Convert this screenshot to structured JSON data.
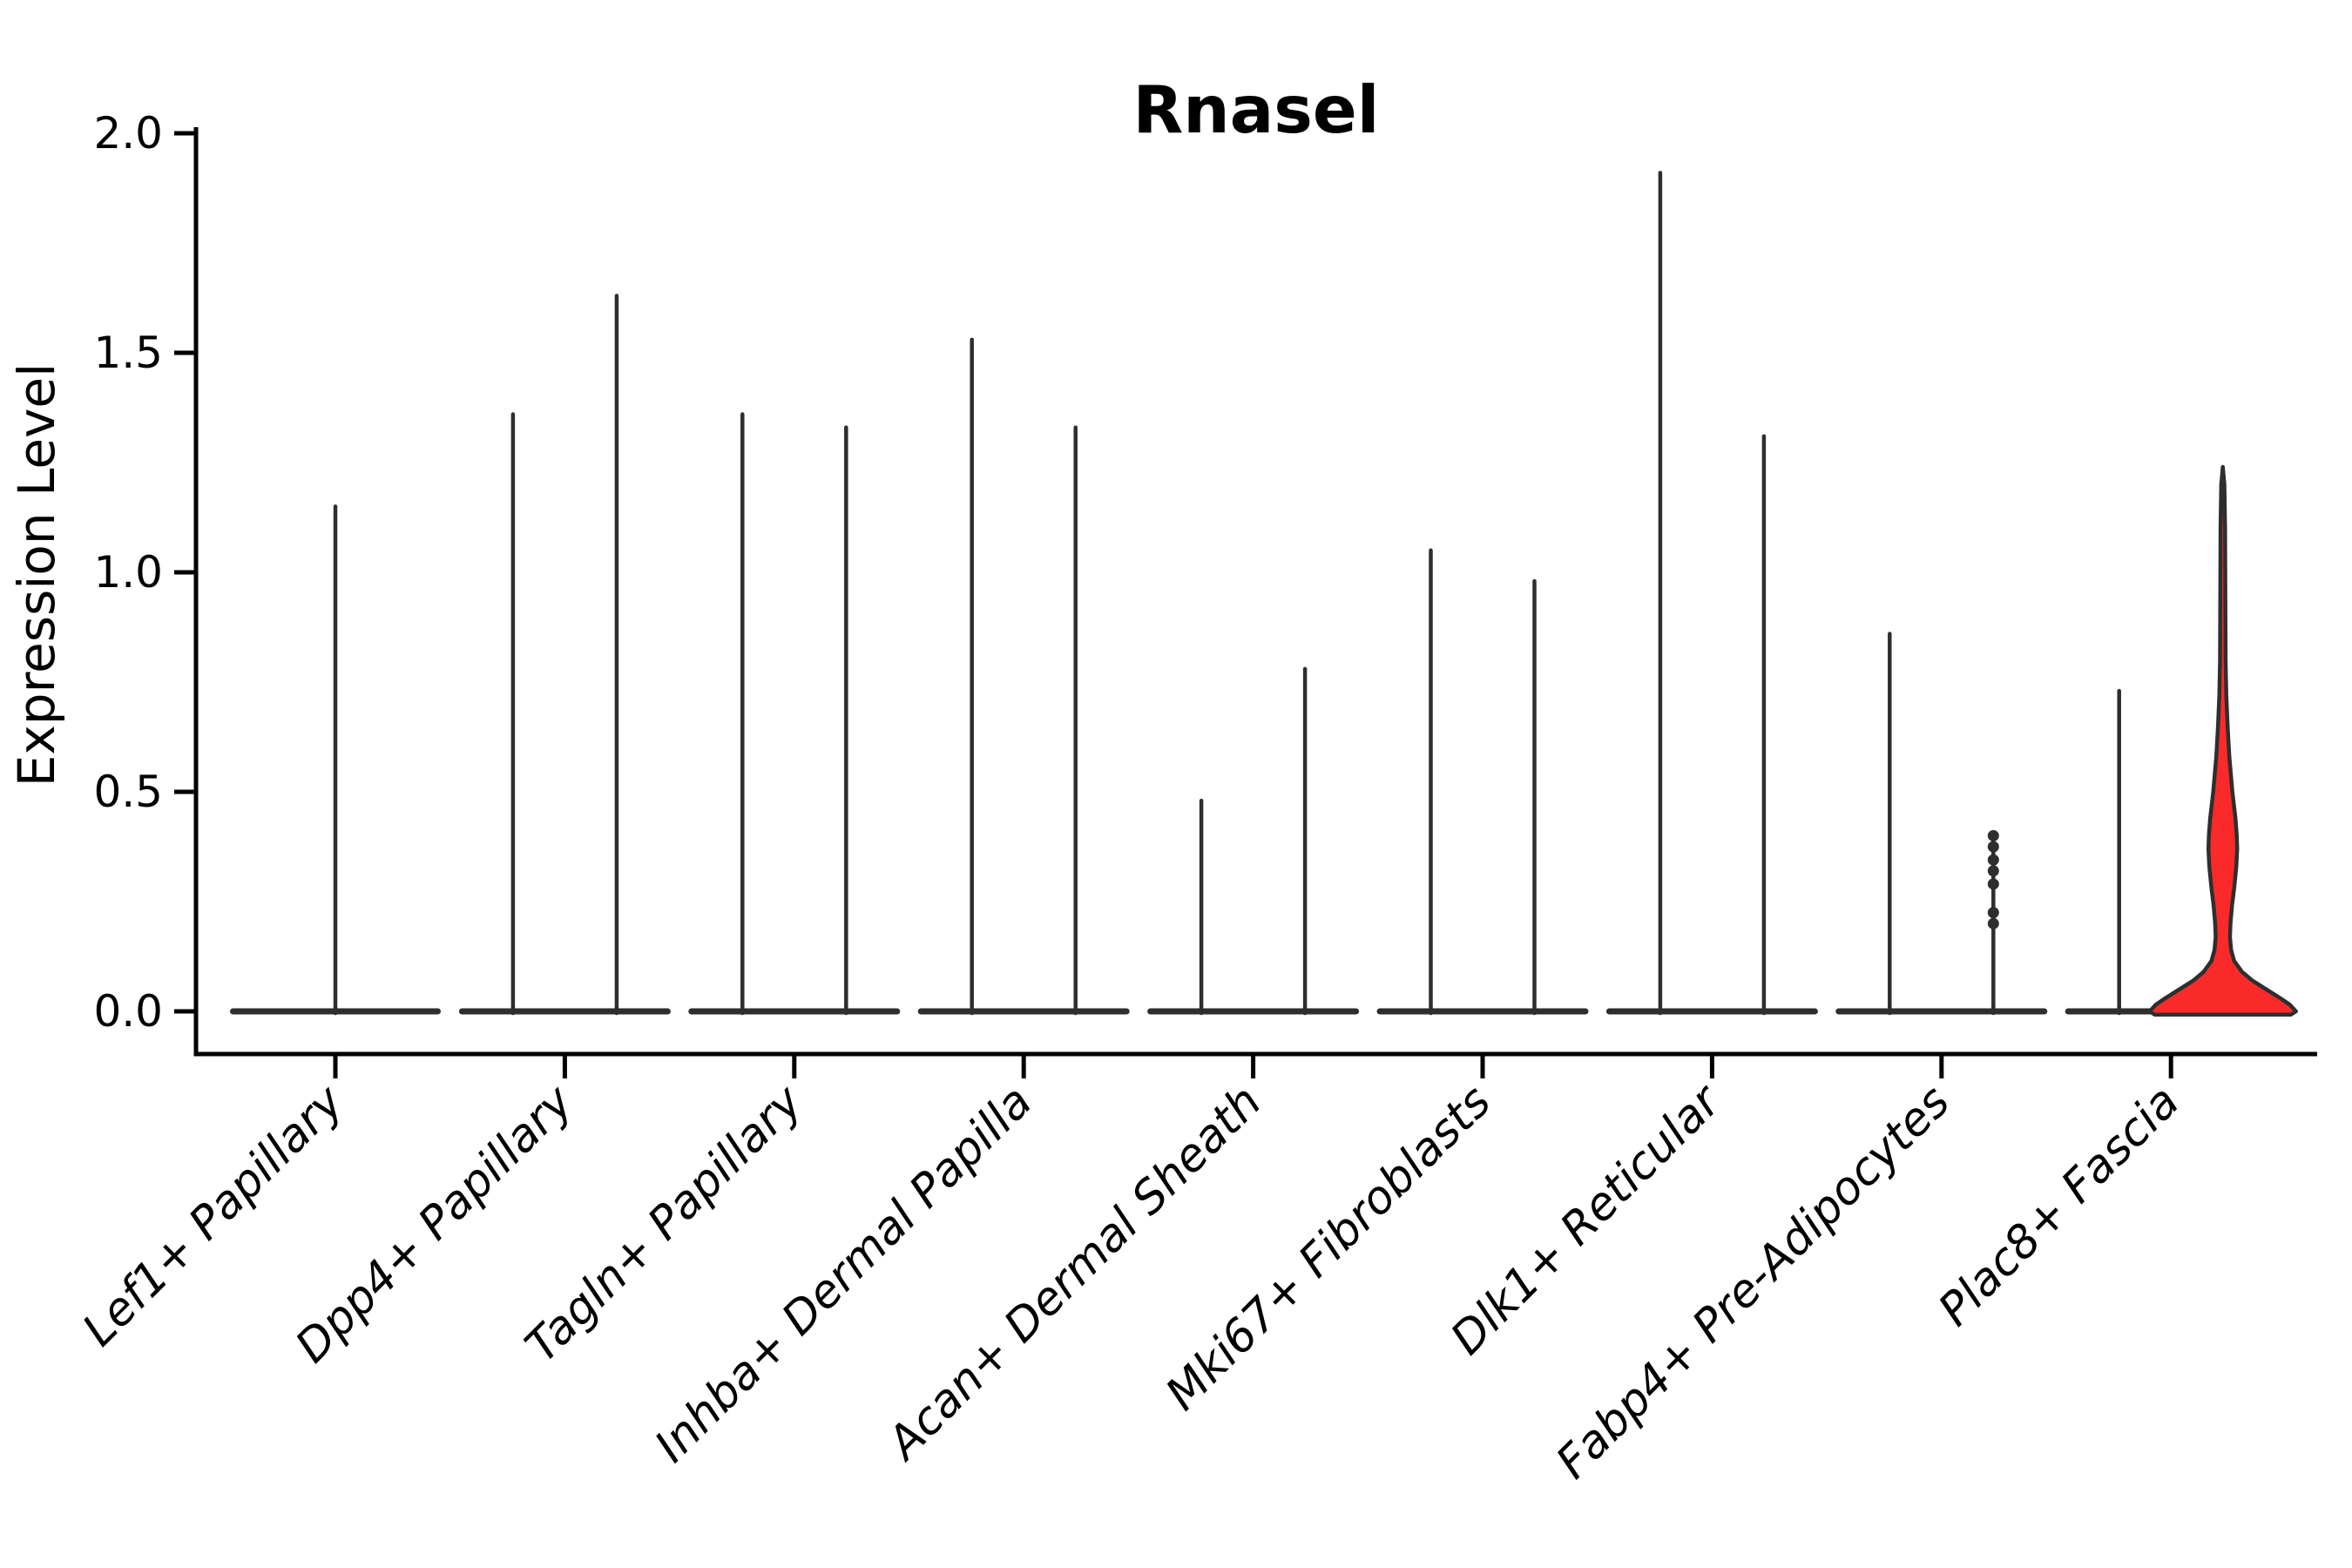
{
  "title": "Rnasel",
  "ylabel": "Expression Level",
  "colors": {
    "background": "#ffffff",
    "axis": "#000000",
    "violin_line": "#2e2e2e",
    "highlight_fill": "#fb2a2a",
    "text": "#000000"
  },
  "chart_data": {
    "type": "violin",
    "title": "Rnasel",
    "xlabel": "",
    "ylabel": "Expression Level",
    "ylim": [
      0.0,
      2.0
    ],
    "yticks": [
      0.0,
      0.5,
      1.0,
      1.5,
      2.0
    ],
    "ytick_labels": [
      "0.0",
      "0.5",
      "1.0",
      "1.5",
      "2.0"
    ],
    "grid": false,
    "legend_position": "none",
    "x_tick_label_rotation_deg": 45,
    "x_tick_label_style": "italic",
    "categories": [
      "Lef1+ Papillary",
      "Dpp4+ Papillary",
      "Tagln+ Papillary",
      "Inhba+ Dermal Papilla",
      "Acan+ Dermal Sheath",
      "Mki67+ Fibroblasts",
      "Dlk1+ Reticular",
      "Fabp4+ Pre-Adipocytes",
      "Plac8+ Fascia"
    ],
    "description": "Two grouped violins per category (except the first, which has a single full-width violin). Almost all density is flattened at expression 0 with a thin spike up to the maximum expressed value. The right violin of Plac8+ Fascia is filled red with a visible density bulge near 0.4 and a wide base at 0.",
    "violins": [
      {
        "category_index": 0,
        "group": "single",
        "max": 1.15,
        "style": "spike"
      },
      {
        "category_index": 1,
        "group": "left",
        "max": 1.36,
        "style": "spike"
      },
      {
        "category_index": 1,
        "group": "right",
        "max": 1.63,
        "style": "spike"
      },
      {
        "category_index": 2,
        "group": "left",
        "max": 1.36,
        "style": "spike"
      },
      {
        "category_index": 2,
        "group": "right",
        "max": 1.33,
        "style": "spike"
      },
      {
        "category_index": 3,
        "group": "left",
        "max": 1.53,
        "style": "spike"
      },
      {
        "category_index": 3,
        "group": "right",
        "max": 1.33,
        "style": "spike"
      },
      {
        "category_index": 4,
        "group": "left",
        "max": 0.48,
        "style": "spike"
      },
      {
        "category_index": 4,
        "group": "right",
        "max": 0.78,
        "style": "spike"
      },
      {
        "category_index": 5,
        "group": "left",
        "max": 1.05,
        "style": "spike"
      },
      {
        "category_index": 5,
        "group": "right",
        "max": 0.98,
        "style": "spike"
      },
      {
        "category_index": 6,
        "group": "left",
        "max": 1.91,
        "style": "spike"
      },
      {
        "category_index": 6,
        "group": "right",
        "max": 1.31,
        "style": "spike"
      },
      {
        "category_index": 7,
        "group": "left",
        "max": 0.86,
        "style": "spike"
      },
      {
        "category_index": 7,
        "group": "right",
        "max": 0.4,
        "style": "spike-with-dots",
        "dots": [
          0.4,
          0.375,
          0.345,
          0.32,
          0.29,
          0.225,
          0.2
        ]
      },
      {
        "category_index": 8,
        "group": "left",
        "max": 0.73,
        "style": "spike"
      },
      {
        "category_index": 8,
        "group": "right",
        "max": 1.24,
        "style": "filled-violin",
        "profile": [
          [
            1.24,
            0.0
          ],
          [
            1.2,
            1.8
          ],
          [
            1.1,
            2.6
          ],
          [
            1.0,
            2.8
          ],
          [
            0.9,
            3.0
          ],
          [
            0.8,
            3.2
          ],
          [
            0.72,
            4.0
          ],
          [
            0.65,
            5.5
          ],
          [
            0.58,
            7.5
          ],
          [
            0.5,
            11.0
          ],
          [
            0.44,
            14.5
          ],
          [
            0.4,
            16.0
          ],
          [
            0.37,
            16.5
          ],
          [
            0.33,
            15.5
          ],
          [
            0.28,
            13.0
          ],
          [
            0.24,
            10.5
          ],
          [
            0.2,
            8.8
          ],
          [
            0.17,
            8.2
          ],
          [
            0.14,
            9.5
          ],
          [
            0.115,
            13.0
          ],
          [
            0.09,
            22.0
          ],
          [
            0.07,
            34.0
          ],
          [
            0.05,
            50.0
          ],
          [
            0.03,
            66.0
          ],
          [
            0.015,
            77.0
          ],
          [
            0.0,
            84.0
          ]
        ]
      }
    ]
  }
}
